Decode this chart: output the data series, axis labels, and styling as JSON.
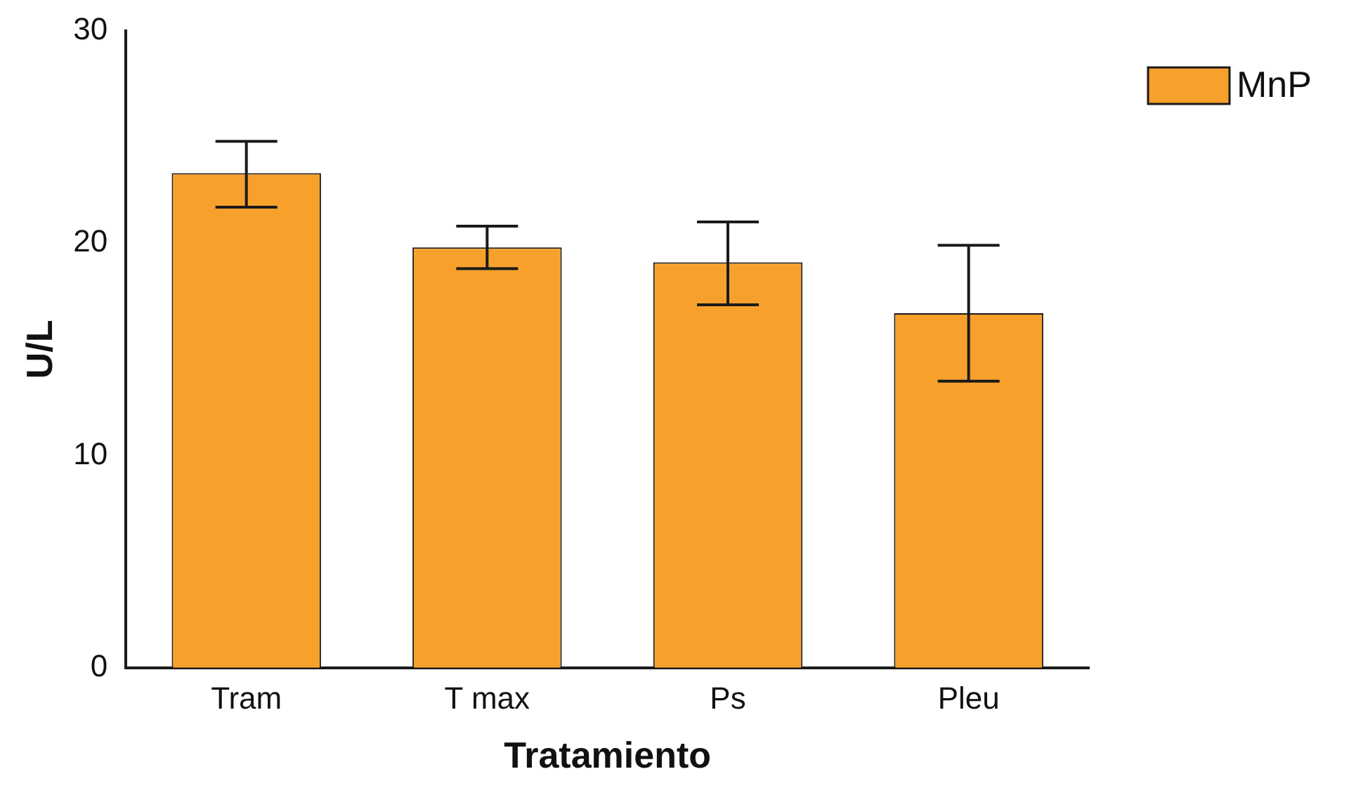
{
  "chart_data": {
    "type": "bar",
    "xlabel": "Tratamiento",
    "ylabel": "U/L",
    "categories": [
      "Tram",
      "T max",
      "Ps",
      "Pleu"
    ],
    "series": [
      {
        "name": "MnP",
        "color": "#f7a12c",
        "values": [
          23.3,
          19.8,
          19.1,
          16.7
        ],
        "errors": [
          [
            21.7,
            24.8
          ],
          [
            18.8,
            20.8
          ],
          [
            17.1,
            21.0
          ],
          [
            13.5,
            19.9
          ]
        ]
      }
    ],
    "ylim": [
      0,
      30
    ],
    "yticks": [
      0,
      10,
      20,
      30
    ],
    "grid": false,
    "legend": "top right"
  }
}
